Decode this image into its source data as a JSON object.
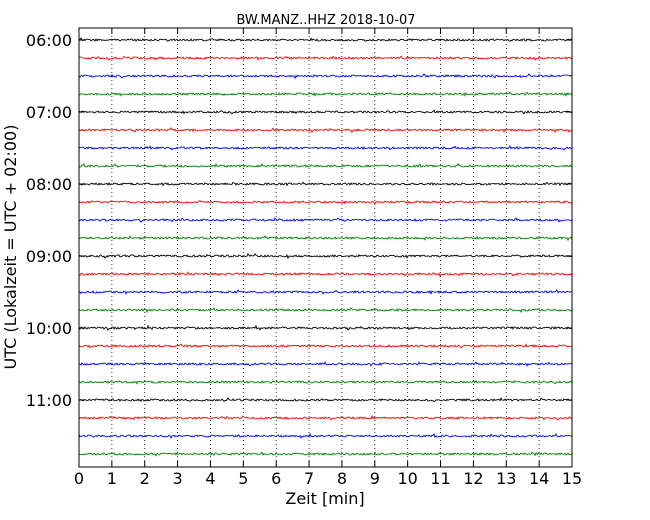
{
  "chart_data": {
    "type": "line",
    "title": "BW.MANZ..HHZ 2018-10-07",
    "xlabel": "Zeit  [min]",
    "ylabel": "UTC (Lokalzeit = UTC + 02:00)",
    "xlim": [
      0,
      15
    ],
    "x_ticks": [
      "0",
      "1",
      "2",
      "3",
      "4",
      "5",
      "6",
      "7",
      "8",
      "9",
      "10",
      "11",
      "12",
      "13",
      "14",
      "15"
    ],
    "y_ticks": [
      {
        "label": "06:00",
        "trace": 0
      },
      {
        "label": "07:00",
        "trace": 4
      },
      {
        "label": "08:00",
        "trace": 8
      },
      {
        "label": "09:00",
        "trace": 12
      },
      {
        "label": "10:00",
        "trace": 16
      },
      {
        "label": "11:00",
        "trace": 20
      }
    ],
    "grid": "vertical-dotted",
    "trace_minutes": 15,
    "trace_colors": [
      "#000000",
      "#ff0000",
      "#0000ff",
      "#008000"
    ],
    "trace_count": 24
  }
}
